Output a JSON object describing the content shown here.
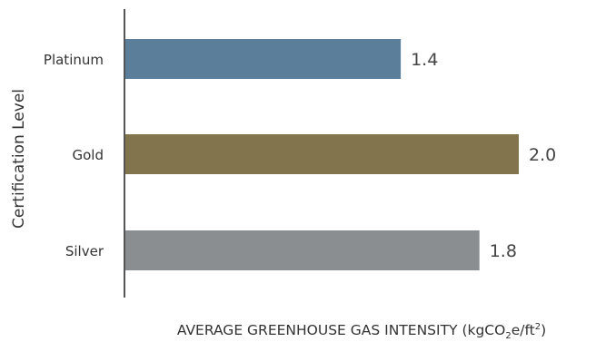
{
  "chart_data": {
    "type": "bar",
    "orientation": "horizontal",
    "categories": [
      "Platinum",
      "Gold",
      "Silver"
    ],
    "values": [
      1.4,
      2.0,
      1.8
    ],
    "data_labels": [
      "1.4",
      "2.0",
      "1.8"
    ],
    "colors": [
      "#5b7f9b",
      "#82744c",
      "#8b8e91"
    ],
    "ylabel": "Certification Level",
    "xlabel_prefix": "AVERAGE GREENHOUSE GAS INTENSITY (kgCO",
    "xlabel_sub": "2",
    "xlabel_mid": "e/ft",
    "xlabel_sup": "2",
    "xlabel_suffix": ")",
    "xlim": [
      0,
      2.2
    ],
    "grid": false,
    "legend": "none"
  }
}
